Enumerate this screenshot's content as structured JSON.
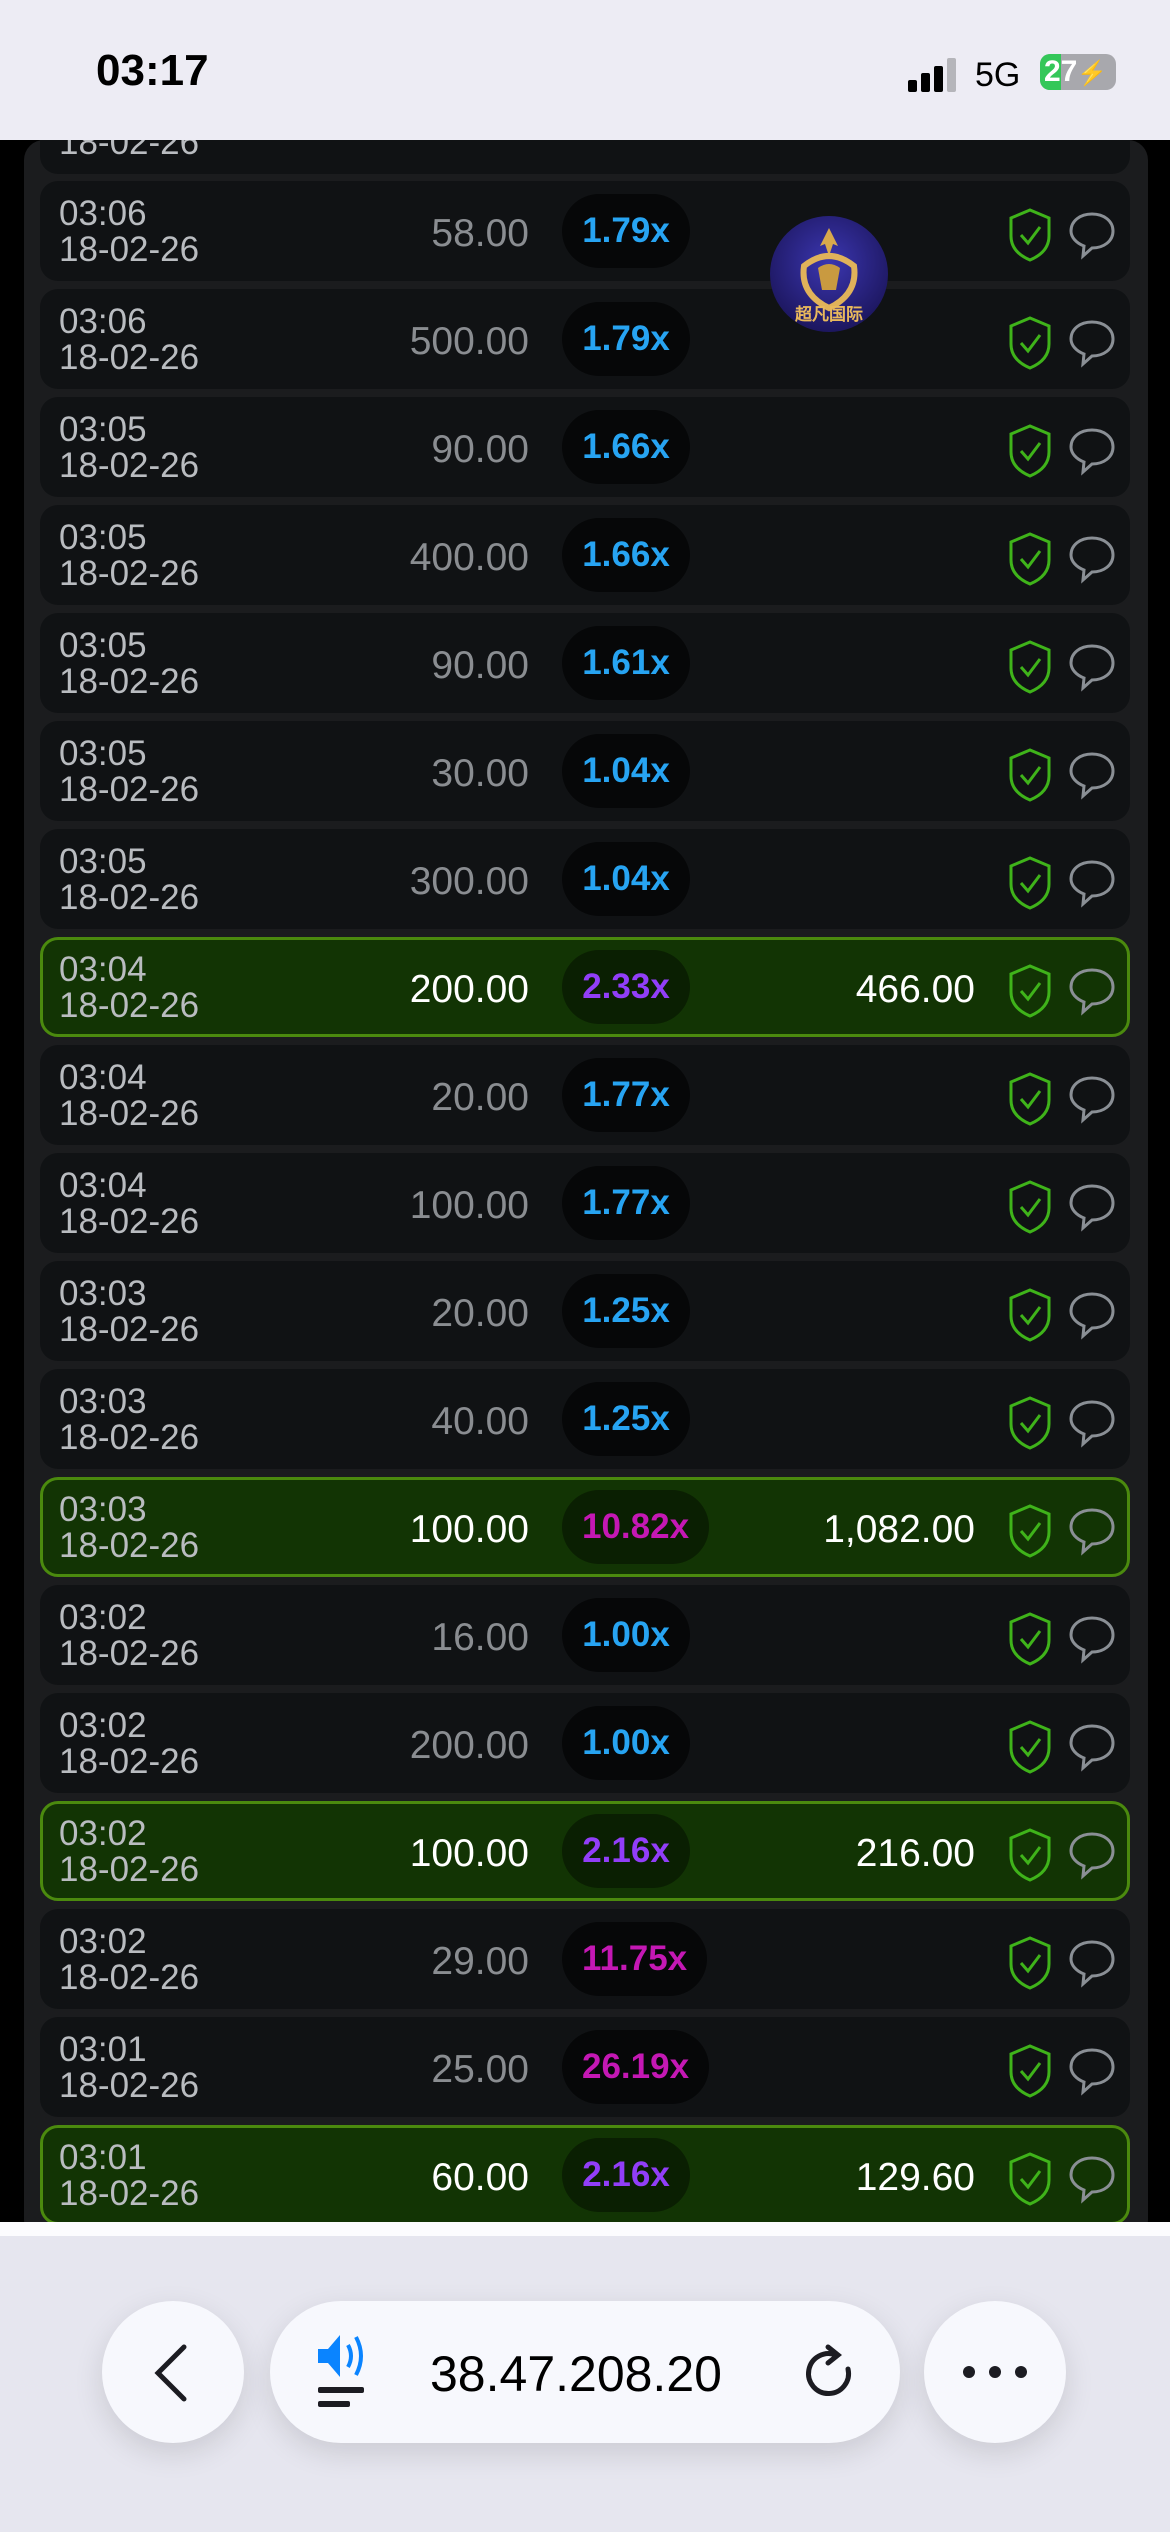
{
  "status_bar": {
    "time": "03:17",
    "network": "5G",
    "battery": "27",
    "battery_level": 27
  },
  "logo_text": "超凡国际",
  "colors": {
    "blue": "#27a4f2",
    "purple": "#913ef8",
    "magenta": "#c418b4",
    "win_bg": "#123404",
    "win_border": "#4b8a0e"
  },
  "partial_row": {
    "date": "18-02-26"
  },
  "rows": [
    {
      "time": "03:06",
      "date": "18-02-26",
      "amount": "58.00",
      "multiplier": "1.79x",
      "color": "blue",
      "payout": "",
      "won": false
    },
    {
      "time": "03:06",
      "date": "18-02-26",
      "amount": "500.00",
      "multiplier": "1.79x",
      "color": "blue",
      "payout": "",
      "won": false
    },
    {
      "time": "03:05",
      "date": "18-02-26",
      "amount": "90.00",
      "multiplier": "1.66x",
      "color": "blue",
      "payout": "",
      "won": false
    },
    {
      "time": "03:05",
      "date": "18-02-26",
      "amount": "400.00",
      "multiplier": "1.66x",
      "color": "blue",
      "payout": "",
      "won": false
    },
    {
      "time": "03:05",
      "date": "18-02-26",
      "amount": "90.00",
      "multiplier": "1.61x",
      "color": "blue",
      "payout": "",
      "won": false
    },
    {
      "time": "03:05",
      "date": "18-02-26",
      "amount": "30.00",
      "multiplier": "1.04x",
      "color": "blue",
      "payout": "",
      "won": false
    },
    {
      "time": "03:05",
      "date": "18-02-26",
      "amount": "300.00",
      "multiplier": "1.04x",
      "color": "blue",
      "payout": "",
      "won": false
    },
    {
      "time": "03:04",
      "date": "18-02-26",
      "amount": "200.00",
      "multiplier": "2.33x",
      "color": "purple",
      "payout": "466.00",
      "won": true
    },
    {
      "time": "03:04",
      "date": "18-02-26",
      "amount": "20.00",
      "multiplier": "1.77x",
      "color": "blue",
      "payout": "",
      "won": false
    },
    {
      "time": "03:04",
      "date": "18-02-26",
      "amount": "100.00",
      "multiplier": "1.77x",
      "color": "blue",
      "payout": "",
      "won": false
    },
    {
      "time": "03:03",
      "date": "18-02-26",
      "amount": "20.00",
      "multiplier": "1.25x",
      "color": "blue",
      "payout": "",
      "won": false
    },
    {
      "time": "03:03",
      "date": "18-02-26",
      "amount": "40.00",
      "multiplier": "1.25x",
      "color": "blue",
      "payout": "",
      "won": false
    },
    {
      "time": "03:03",
      "date": "18-02-26",
      "amount": "100.00",
      "multiplier": "10.82x",
      "color": "magenta",
      "payout": "1,082.00",
      "won": true
    },
    {
      "time": "03:02",
      "date": "18-02-26",
      "amount": "16.00",
      "multiplier": "1.00x",
      "color": "blue",
      "payout": "",
      "won": false
    },
    {
      "time": "03:02",
      "date": "18-02-26",
      "amount": "200.00",
      "multiplier": "1.00x",
      "color": "blue",
      "payout": "",
      "won": false
    },
    {
      "time": "03:02",
      "date": "18-02-26",
      "amount": "100.00",
      "multiplier": "2.16x",
      "color": "purple",
      "payout": "216.00",
      "won": true
    },
    {
      "time": "03:02",
      "date": "18-02-26",
      "amount": "29.00",
      "multiplier": "11.75x",
      "color": "magenta",
      "payout": "",
      "won": false
    },
    {
      "time": "03:01",
      "date": "18-02-26",
      "amount": "25.00",
      "multiplier": "26.19x",
      "color": "magenta",
      "payout": "",
      "won": false
    },
    {
      "time": "03:01",
      "date": "18-02-26",
      "amount": "60.00",
      "multiplier": "2.16x",
      "color": "purple",
      "payout": "129.60",
      "won": true
    }
  ],
  "browser": {
    "url": "38.47.208.20",
    "icons": [
      "back-icon",
      "speaker-icon",
      "reload-icon",
      "more-icon"
    ]
  }
}
